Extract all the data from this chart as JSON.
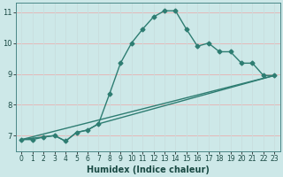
{
  "title": "",
  "xlabel": "Humidex (Indice chaleur)",
  "xlim": [
    -0.5,
    23.5
  ],
  "ylim": [
    6.5,
    11.3
  ],
  "xticks": [
    0,
    1,
    2,
    3,
    4,
    5,
    6,
    7,
    8,
    9,
    10,
    11,
    12,
    13,
    14,
    15,
    16,
    17,
    18,
    19,
    20,
    21,
    22,
    23
  ],
  "yticks": [
    7,
    8,
    9,
    10,
    11
  ],
  "bg_color": "#cde8e8",
  "line_color": "#2e7d72",
  "grid_color_h": "#e8b0b0",
  "grid_color_v": "#c8dede",
  "line1_x": [
    0,
    1,
    2,
    3,
    4,
    5,
    6,
    7,
    8,
    9,
    10,
    11,
    12,
    13,
    14,
    15,
    16,
    17,
    18,
    19,
    20,
    21,
    22,
    23
  ],
  "line1_y": [
    6.87,
    6.87,
    6.95,
    7.0,
    6.82,
    7.1,
    7.18,
    7.38,
    8.35,
    9.35,
    10.0,
    10.45,
    10.85,
    11.05,
    11.05,
    10.45,
    9.9,
    10.0,
    9.72,
    9.72,
    9.35,
    9.35,
    8.95,
    8.95
  ],
  "line2_x": [
    0,
    23
  ],
  "line2_y": [
    6.87,
    8.95
  ],
  "line3_x": [
    0,
    3,
    4,
    5,
    6,
    7,
    23
  ],
  "line3_y": [
    6.87,
    7.0,
    6.82,
    7.1,
    7.18,
    7.38,
    8.95
  ],
  "marker": "D",
  "markersize": 2.5,
  "linewidth": 1.0,
  "xlabel_fontsize": 7,
  "tick_fontsize": 5.5
}
